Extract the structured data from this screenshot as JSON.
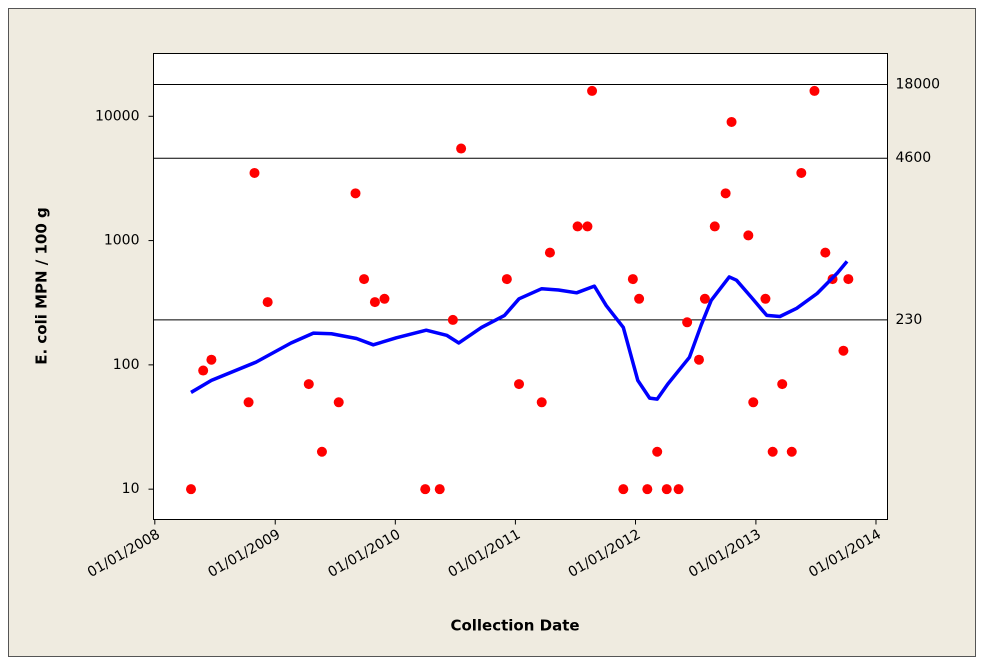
{
  "chart_data": {
    "type": "scatter",
    "x_label": "Collection Date",
    "y_label": "E. coli MPN / 100 g",
    "log_y": true,
    "xlim": [
      "2007-12-28",
      "2014-02-05"
    ],
    "ylim": [
      5.7,
      32000
    ],
    "xticks": [
      {
        "value": "2008-01-01",
        "label": "01/01/2008"
      },
      {
        "value": "2009-01-01",
        "label": "01/01/2009"
      },
      {
        "value": "2010-01-01",
        "label": "01/01/2010"
      },
      {
        "value": "2011-01-01",
        "label": "01/01/2011"
      },
      {
        "value": "2012-01-01",
        "label": "01/01/2012"
      },
      {
        "value": "2013-01-01",
        "label": "01/01/2013"
      },
      {
        "value": "2014-01-01",
        "label": "01/01/2014"
      }
    ],
    "yticks": [
      10,
      100,
      1000,
      10000
    ],
    "reference_lines": [
      230,
      4600,
      18000
    ],
    "series": [
      {
        "color": "#ff0000",
        "x": [
          "2008-04-20",
          "2008-05-27",
          "2008-06-21",
          "2008-10-12",
          "2008-10-30",
          "2008-12-09",
          "2009-04-13",
          "2009-05-23",
          "2009-07-13",
          "2009-09-02",
          "2009-09-28",
          "2009-10-31",
          "2009-11-29",
          "2010-04-02",
          "2010-05-16",
          "2010-06-25",
          "2010-07-20",
          "2010-12-06",
          "2011-01-12",
          "2011-03-22",
          "2011-04-16",
          "2011-07-09",
          "2011-08-08",
          "2011-08-22",
          "2011-11-25",
          "2011-12-24",
          "2012-01-12",
          "2012-02-06",
          "2012-03-07",
          "2012-04-05",
          "2012-05-11",
          "2012-06-06",
          "2012-07-12",
          "2012-07-30",
          "2012-08-29",
          "2012-10-01",
          "2012-10-19",
          "2012-12-09",
          "2012-12-24",
          "2013-01-30",
          "2013-02-21",
          "2013-03-22",
          "2013-04-20",
          "2013-05-19",
          "2013-06-28",
          "2013-07-31",
          "2013-08-22",
          "2013-09-24",
          "2013-10-09"
        ],
        "values": [
          10,
          90,
          110,
          50,
          3500,
          320,
          70,
          20,
          50,
          2400,
          490,
          320,
          340,
          10,
          10,
          230,
          5500,
          490,
          70,
          50,
          800,
          1300,
          1300,
          16000,
          10,
          490,
          340,
          10,
          20,
          10,
          10,
          220,
          110,
          340,
          1300,
          2400,
          9000,
          1100,
          50,
          340,
          20,
          70,
          20,
          3500,
          16000,
          800,
          490,
          130,
          490
        ]
      },
      {
        "color": "#0000ff",
        "line": true,
        "x": [
          "2008-04-20",
          "2008-06-21",
          "2008-11-03",
          "2009-02-18",
          "2009-04-27",
          "2009-06-21",
          "2009-09-05",
          "2009-10-26",
          "2010-01-04",
          "2010-04-05",
          "2010-06-06",
          "2010-07-13",
          "2010-09-20",
          "2010-11-29",
          "2011-01-12",
          "2011-03-22",
          "2011-05-12",
          "2011-07-06",
          "2011-08-29",
          "2011-10-04",
          "2011-11-25",
          "2012-01-08",
          "2012-02-13",
          "2012-03-07",
          "2012-04-08",
          "2012-06-13",
          "2012-07-19",
          "2012-08-18",
          "2012-10-12",
          "2012-11-03",
          "2012-12-20",
          "2013-02-03",
          "2013-03-15",
          "2013-05-05",
          "2013-07-06",
          "2013-09-06",
          "2013-10-05"
        ],
        "values": [
          60,
          75,
          105,
          150,
          180,
          178,
          163,
          145,
          165,
          190,
          173,
          150,
          200,
          250,
          340,
          410,
          400,
          380,
          430,
          300,
          200,
          75,
          54,
          53,
          70,
          115,
          210,
          330,
          510,
          480,
          345,
          250,
          245,
          285,
          375,
          550,
          680
        ]
      }
    ]
  }
}
